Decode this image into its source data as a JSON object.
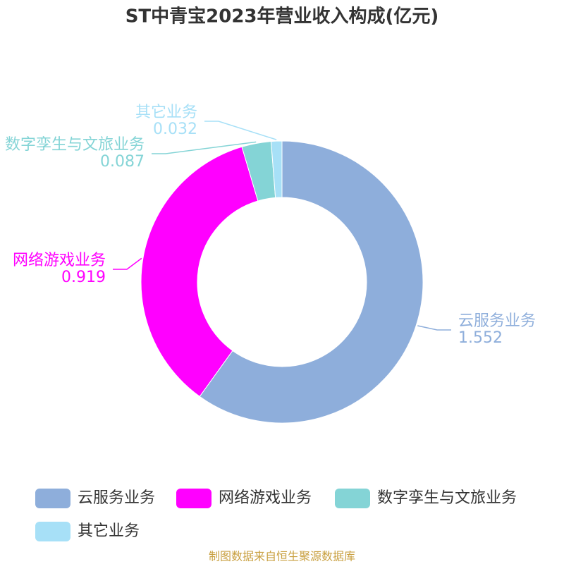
{
  "chart_data": {
    "type": "donut",
    "title": "ST中青宝2023年营业收入构成(亿元)",
    "categories": [
      "云服务业务",
      "网络游戏业务",
      "数字孪生与文旅业务",
      "其它业务"
    ],
    "values": [
      1.552,
      0.919,
      0.087,
      0.032
    ],
    "colors": [
      "#8eaedb",
      "#ff00ff",
      "#84d4d6",
      "#a7e0f7"
    ],
    "source": "制图数据来自恒生聚源数据库"
  }
}
